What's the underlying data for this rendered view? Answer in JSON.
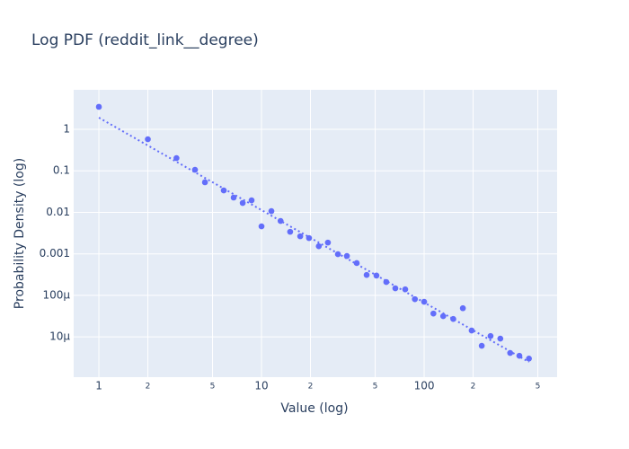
{
  "chart_data": {
    "type": "scatter",
    "title": "Log PDF (reddit_link__degree)",
    "x_label": "Value (log)",
    "y_label": "Probability Density (log)",
    "xscale": "log",
    "yscale": "log",
    "grid": true,
    "background": "#e5ecf6",
    "xlim": [
      0.7,
      657
    ],
    "ylim": [
      1.07e-06,
      8.96
    ],
    "xticks": [
      1,
      2,
      5,
      10,
      {
        "value": 20,
        "label": "2"
      },
      {
        "value": 50,
        "label": "5"
      },
      100,
      {
        "value": 200,
        "label": "2"
      },
      {
        "value": 500,
        "label": "5"
      }
    ],
    "yticks": [
      1,
      0.1,
      0.01,
      0.001,
      {
        "value": 0.0001,
        "label": "100μ"
      },
      {
        "value": 1e-05,
        "label": "10μ"
      }
    ],
    "series": [
      {
        "mode": "markers",
        "color": "#636efa",
        "x": [
          1,
          2,
          3,
          3.9,
          4.49,
          5.86,
          6.74,
          7.66,
          8.69,
          10,
          11.5,
          13.1,
          15,
          17.3,
          19.6,
          22.5,
          25.6,
          29.5,
          33.5,
          38.5,
          44.3,
          50.9,
          58.5,
          66.5,
          76.5,
          87.7,
          100,
          114,
          131,
          151,
          173,
          196,
          226,
          256,
          294,
          338,
          385,
          441
        ],
        "values": [
          3.48,
          0.578,
          0.203,
          0.106,
          0.053,
          0.0337,
          0.0227,
          0.0168,
          0.0195,
          0.0046,
          0.0107,
          0.0062,
          0.0034,
          0.00265,
          0.0024,
          0.00153,
          0.00187,
          0.00098,
          0.00089,
          0.0006,
          0.00031,
          0.0003,
          0.00021,
          0.000148,
          0.00014,
          8.1e-05,
          7e-05,
          3.65e-05,
          3.15e-05,
          2.7e-05,
          4.9e-05,
          1.42e-05,
          6.1e-06,
          1.05e-05,
          9.1e-06,
          4.1e-06,
          3.5e-06,
          3e-06
        ]
      },
      {
        "mode": "dotted-line",
        "color": "#636efa",
        "x": [
          1,
          441
        ],
        "values": [
          1.91,
          2.48e-06
        ]
      }
    ]
  }
}
